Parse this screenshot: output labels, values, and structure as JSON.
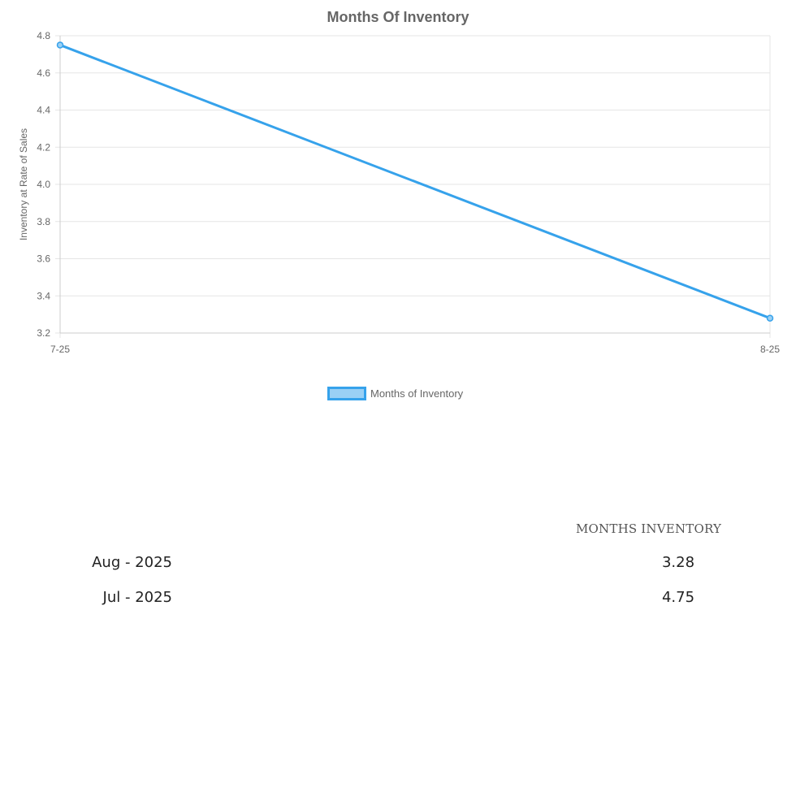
{
  "chart_data": {
    "type": "line",
    "title": "Months Of Inventory",
    "xlabel": "",
    "ylabel": "Inventory at Rate of Sales",
    "categories": [
      "7-25",
      "8-25"
    ],
    "series": [
      {
        "name": "Months of Inventory",
        "values": [
          4.75,
          3.28
        ]
      }
    ],
    "ylim": [
      3.2,
      4.8
    ],
    "yticks": [
      "4.8",
      "4.6",
      "4.4",
      "4.2",
      "4.0",
      "3.8",
      "3.6",
      "3.4",
      "3.2"
    ],
    "grid": true,
    "legend": "bottom-center",
    "colors": {
      "line": "#36a2eb",
      "legend_fill": "#9ad0f5",
      "grid": "#e5e5e5",
      "text": "#666666"
    }
  },
  "table": {
    "header": "MONTHS INVENTORY",
    "rows": [
      {
        "month": "Aug - 2025",
        "value": "3.28"
      },
      {
        "month": "Jul - 2025",
        "value": "4.75"
      }
    ]
  }
}
